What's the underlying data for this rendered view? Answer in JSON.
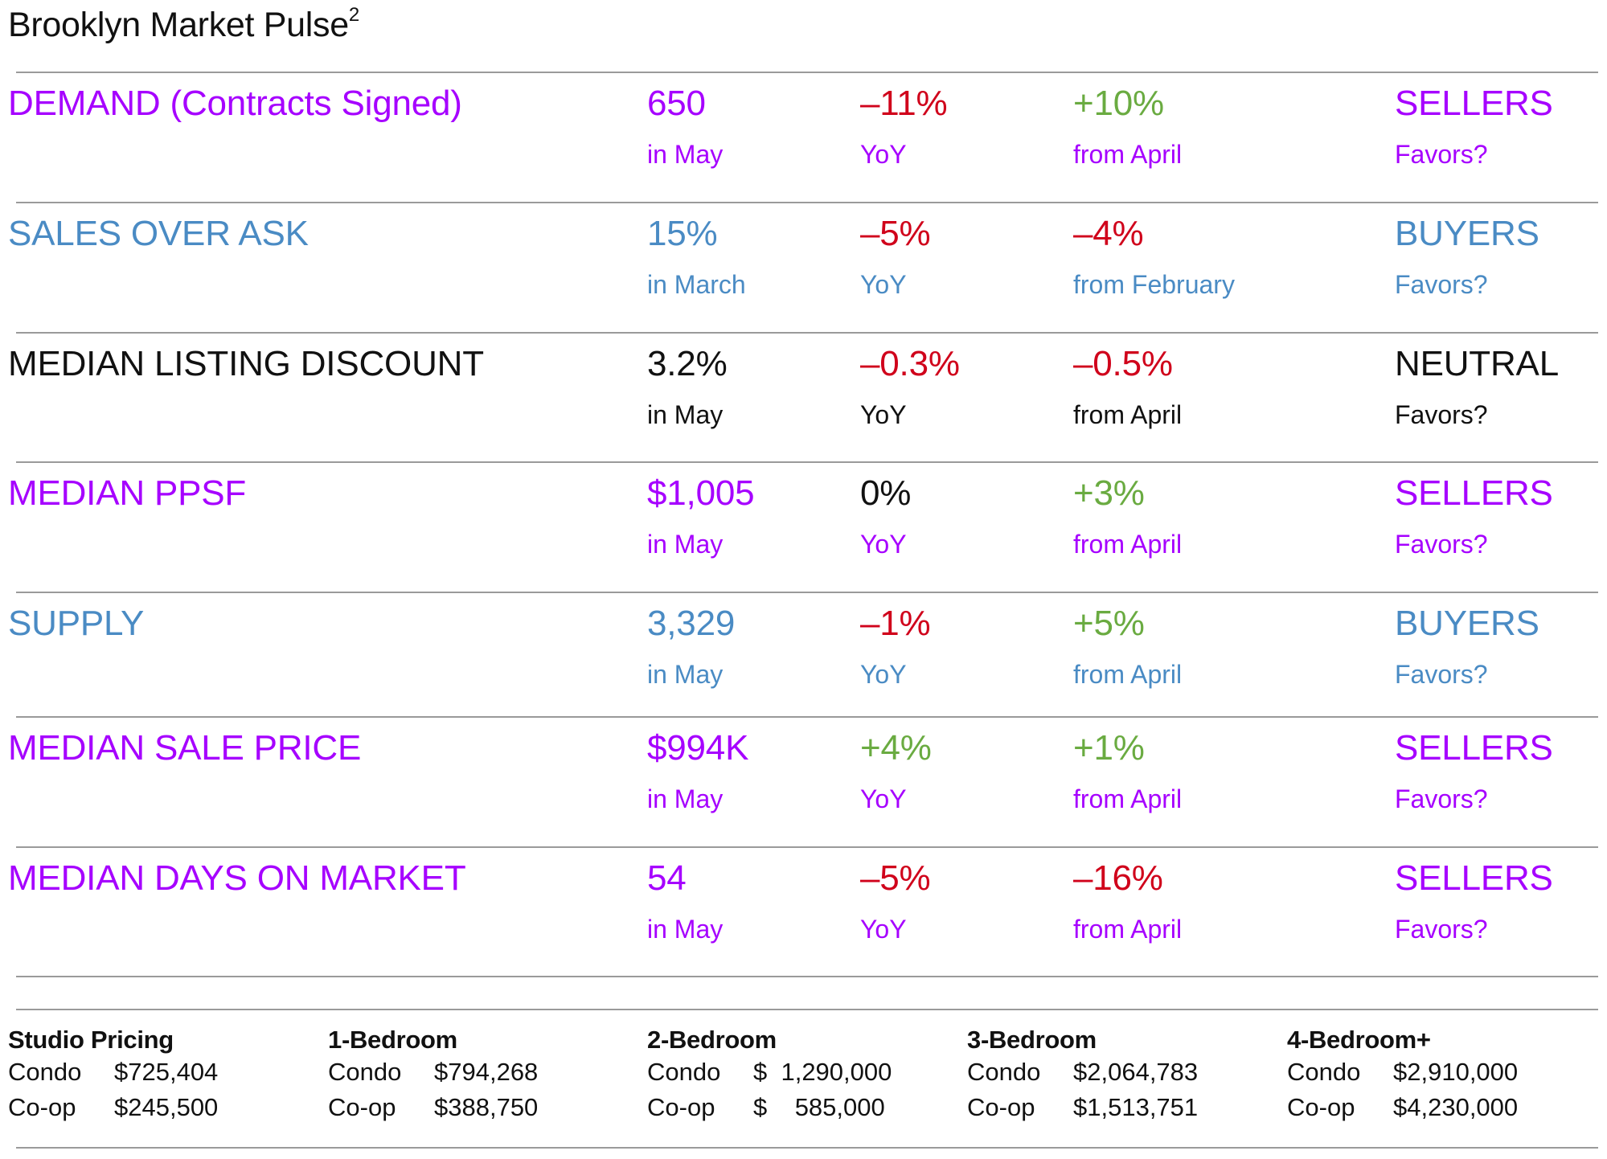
{
  "title": {
    "text": "Brooklyn Market Pulse",
    "superscript": "2"
  },
  "colors": {
    "purple": "#a600ff",
    "blue": "#4a8bc4",
    "black": "#111111",
    "red": "#d0021b",
    "green": "#6aab41",
    "rule": "#9a9a9a"
  },
  "metrics": [
    {
      "name": "DEMAND (Contracts Signed)",
      "value": "650",
      "period": "in May",
      "yoy": "–11%",
      "yoy_label": "YoY",
      "mom": "+10%",
      "mom_label": "from April",
      "favors": "SELLERS",
      "favors_label": "Favors?",
      "row_color": "purple",
      "yoy_color": "red",
      "mom_color": "green"
    },
    {
      "name": "SALES OVER ASK",
      "value": "15%",
      "period": "in March",
      "yoy": "–5%",
      "yoy_label": "YoY",
      "mom": "–4%",
      "mom_label": "from February",
      "favors": "BUYERS",
      "favors_label": "Favors?",
      "row_color": "blue",
      "yoy_color": "red",
      "mom_color": "red"
    },
    {
      "name": "MEDIAN LISTING DISCOUNT",
      "value": "3.2%",
      "period": "in May",
      "yoy": "–0.3%",
      "yoy_label": "YoY",
      "mom": "–0.5%",
      "mom_label": "from April",
      "favors": "NEUTRAL",
      "favors_label": "Favors?",
      "row_color": "black",
      "yoy_color": "red",
      "mom_color": "red"
    },
    {
      "name": "MEDIAN PPSF",
      "value": "$1,005",
      "period": "in May",
      "yoy": "0%",
      "yoy_label": "YoY",
      "mom": "+3%",
      "mom_label": "from April",
      "favors": "SELLERS",
      "favors_label": "Favors?",
      "row_color": "purple",
      "yoy_color": "black",
      "mom_color": "green"
    },
    {
      "name": "SUPPLY",
      "value": "3,329",
      "period": "in May",
      "yoy": "–1%",
      "yoy_label": "YoY",
      "mom": "+5%",
      "mom_label": "from April",
      "favors": "BUYERS",
      "favors_label": "Favors?",
      "row_color": "blue",
      "yoy_color": "red",
      "mom_color": "green"
    },
    {
      "name": "MEDIAN SALE PRICE",
      "value": "$994K",
      "period": "in May",
      "yoy": "+4%",
      "yoy_label": "YoY",
      "mom": "+1%",
      "mom_label": "from April",
      "favors": "SELLERS",
      "favors_label": "Favors?",
      "row_color": "purple",
      "yoy_color": "green",
      "mom_color": "green"
    },
    {
      "name": "MEDIAN DAYS ON MARKET",
      "value": "54",
      "period": "in May",
      "yoy": "–5%",
      "yoy_label": "YoY",
      "mom": "–16%",
      "mom_label": "from April",
      "favors": "SELLERS",
      "favors_label": "Favors?",
      "row_color": "purple",
      "yoy_color": "red",
      "mom_color": "red"
    }
  ],
  "pricing": [
    {
      "heading": "Studio Pricing",
      "condo_label": "Condo",
      "condo_value": "$725,404",
      "coop_label": "Co-op",
      "coop_value": "$245,500"
    },
    {
      "heading": "1-Bedroom",
      "condo_label": "Condo",
      "condo_value": "$794,268",
      "coop_label": "Co-op",
      "coop_value": "$388,750"
    },
    {
      "heading": "2-Bedroom",
      "condo_label": "Condo",
      "condo_value": "$  1,290,000",
      "coop_label": "Co-op",
      "coop_value": "$    585,000"
    },
    {
      "heading": "3-Bedroom",
      "condo_label": "Condo",
      "condo_value": "$2,064,783",
      "coop_label": "Co-op",
      "coop_value": "$1,513,751"
    },
    {
      "heading": "4-Bedroom+",
      "condo_label": "Condo",
      "condo_value": "$2,910,000",
      "coop_label": "Co-op",
      "coop_value": "$4,230,000"
    }
  ]
}
